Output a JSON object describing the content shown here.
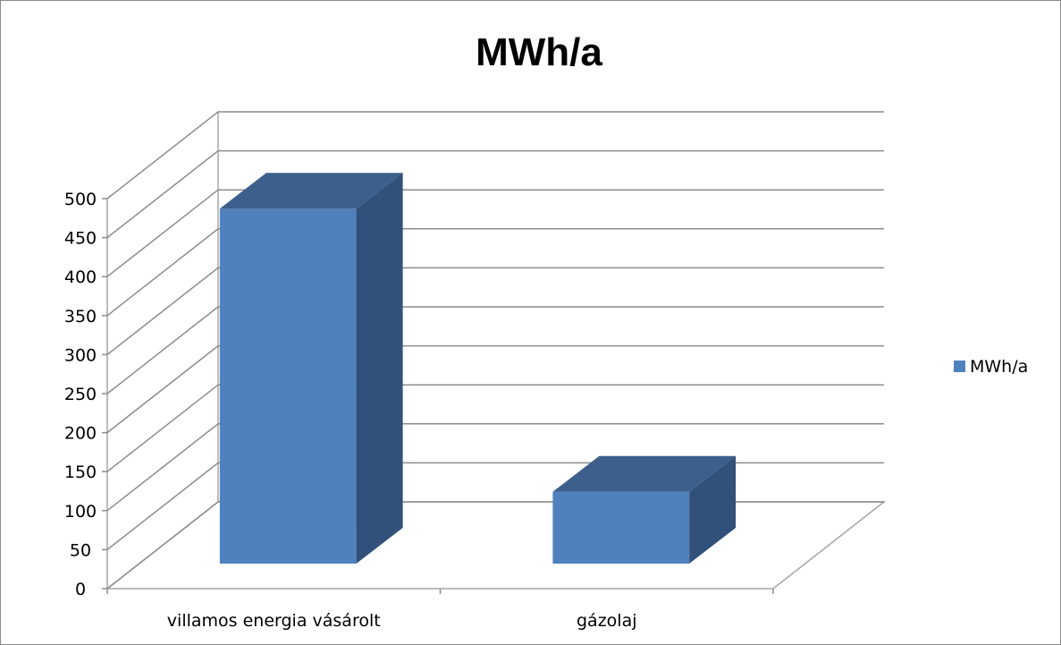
{
  "chart_data": {
    "type": "bar",
    "title": "MWh/a",
    "categories": [
      "villamos energia vásárolt",
      "gázolaj"
    ],
    "series": [
      {
        "name": "MWh/a",
        "values": [
          455,
          92
        ],
        "color": "#4F81BD"
      }
    ],
    "ylim": [
      0,
      500
    ],
    "yticks": [
      0,
      50,
      100,
      150,
      200,
      250,
      300,
      350,
      400,
      450,
      500
    ],
    "grid": true,
    "legend_position": "right",
    "three_d": true
  }
}
